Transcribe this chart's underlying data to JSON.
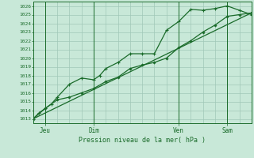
{
  "title": "",
  "xlabel": "Pression niveau de la mer( hPa )",
  "background_color": "#c8e8d8",
  "plot_bg_color": "#c8e8d8",
  "grid_color": "#a0c8b8",
  "line_color": "#1a6b2a",
  "ylim": [
    1012.5,
    1026.5
  ],
  "xlim": [
    0,
    108
  ],
  "x_ticks": [
    6,
    30,
    72,
    96
  ],
  "x_tick_labels": [
    "Jeu",
    "Dim",
    "Ven",
    "Sam"
  ],
  "x_vlines": [
    6,
    30,
    72,
    96
  ],
  "yticks": [
    1013,
    1014,
    1015,
    1016,
    1017,
    1018,
    1019,
    1020,
    1021,
    1022,
    1023,
    1024,
    1025,
    1026
  ],
  "series1_x": [
    0,
    3,
    6,
    9,
    12,
    18,
    24,
    30,
    33,
    36,
    42,
    48,
    54,
    60,
    66,
    72,
    78,
    84,
    90,
    96,
    102,
    108
  ],
  "series1_y": [
    1013.0,
    1013.7,
    1014.2,
    1014.7,
    1015.5,
    1017.0,
    1017.7,
    1017.5,
    1018.0,
    1018.8,
    1019.5,
    1020.5,
    1020.5,
    1020.5,
    1023.2,
    1024.2,
    1025.6,
    1025.5,
    1025.7,
    1026.0,
    1025.5,
    1025.0
  ],
  "series2_x": [
    0,
    6,
    12,
    18,
    24,
    30,
    36,
    42,
    48,
    54,
    60,
    66,
    72,
    78,
    84,
    90,
    96,
    102,
    108
  ],
  "series2_y": [
    1013.0,
    1014.2,
    1015.2,
    1015.5,
    1016.0,
    1016.5,
    1017.3,
    1017.8,
    1018.8,
    1019.2,
    1019.5,
    1020.0,
    1021.2,
    1022.0,
    1023.0,
    1023.8,
    1024.8,
    1025.0,
    1025.2
  ],
  "series3_x": [
    0,
    108
  ],
  "series3_y": [
    1013.0,
    1025.2
  ]
}
